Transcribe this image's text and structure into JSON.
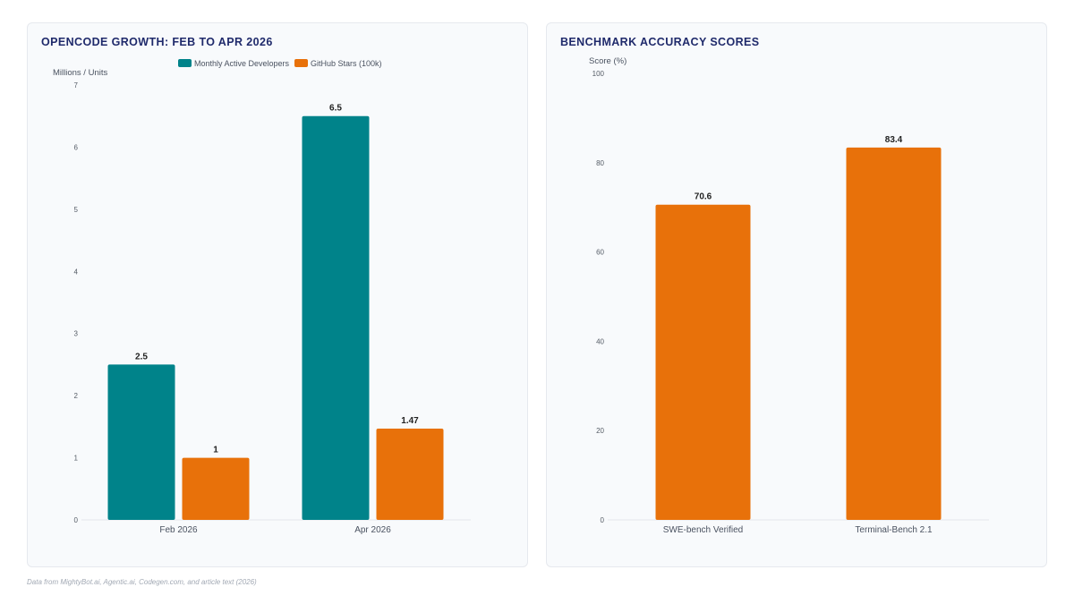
{
  "footnote": "Data from MightyBot.ai, Agentic.ai, Codegen.com, and article text (2026)",
  "chart_data": [
    {
      "type": "bar",
      "title": "OPENCODE GROWTH: FEB TO APR 2026",
      "ylabel": "Millions / Units",
      "xlabel": "",
      "categories": [
        "Feb 2026",
        "Apr 2026"
      ],
      "ylim": [
        0,
        7
      ],
      "yticks": [
        0,
        1,
        2,
        3,
        4,
        5,
        6,
        7
      ],
      "grid": false,
      "legend": "top-center",
      "series": [
        {
          "name": "Monthly Active Developers",
          "values": [
            2.5,
            6.5
          ],
          "color": "#00838a"
        },
        {
          "name": "GitHub Stars (100k)",
          "values": [
            1,
            1.47
          ],
          "color": "#e8710a"
        }
      ]
    },
    {
      "type": "bar",
      "title": "BENCHMARK ACCURACY SCORES",
      "ylabel": "Score (%)",
      "xlabel": "",
      "categories": [
        "SWE-bench Verified",
        "Terminal-Bench 2.1"
      ],
      "ylim": [
        0,
        100
      ],
      "yticks": [
        0,
        20,
        40,
        60,
        80,
        100
      ],
      "grid": false,
      "legend": "none",
      "series": [
        {
          "values": [
            70.6,
            83.4
          ],
          "color": "#e8710a"
        }
      ]
    }
  ]
}
